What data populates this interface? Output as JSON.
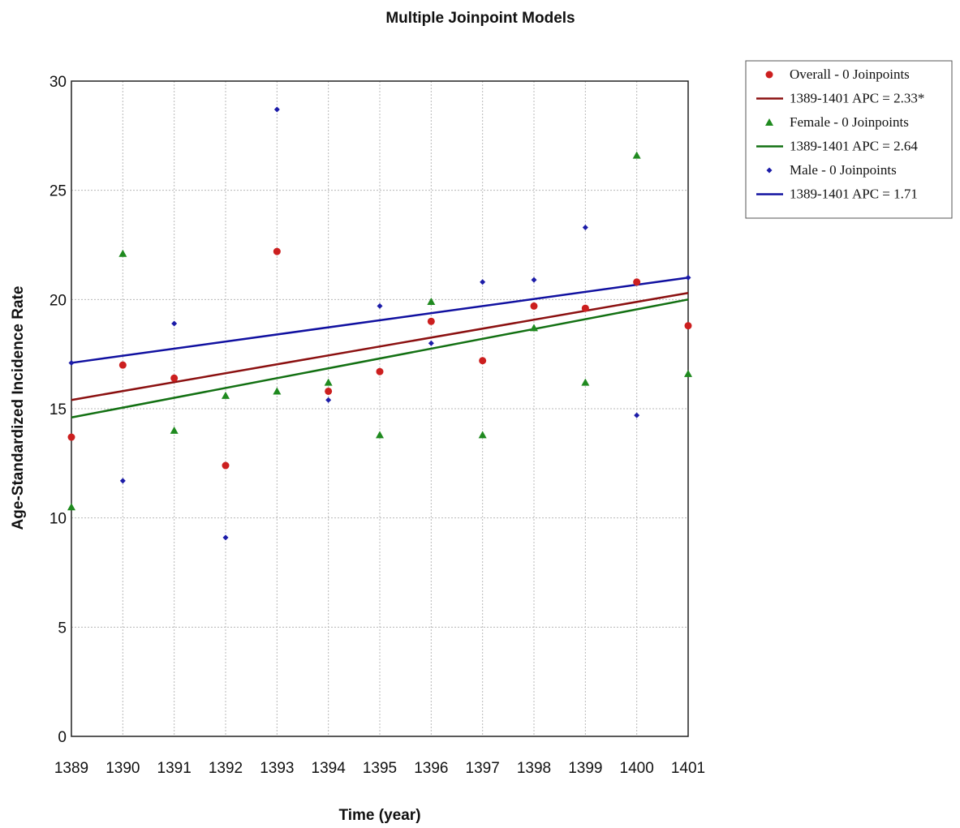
{
  "chart_data": {
    "type": "scatter",
    "title": "Multiple Joinpoint Models",
    "xlabel": "Time (year)",
    "ylabel": "Age-Standardized Incidence Rate",
    "x": [
      1389,
      1390,
      1391,
      1392,
      1393,
      1394,
      1395,
      1396,
      1397,
      1398,
      1399,
      1400,
      1401
    ],
    "xlim": [
      1389,
      1401
    ],
    "ylim": [
      0,
      30
    ],
    "yticks": [
      0,
      5,
      10,
      15,
      20,
      25,
      30
    ],
    "grid": true,
    "legend_position": "outside-right",
    "series": [
      {
        "name": "Overall - 0 Joinpoints",
        "marker": "circle",
        "color": "#cc1f1f",
        "values": [
          13.7,
          17.0,
          16.4,
          12.4,
          22.2,
          15.8,
          16.7,
          19.0,
          17.2,
          19.7,
          19.6,
          20.8,
          18.8
        ]
      },
      {
        "name": "Female - 0 Joinpoints",
        "marker": "triangle",
        "color": "#1f8a1f",
        "values": [
          10.5,
          22.1,
          14.0,
          15.6,
          15.8,
          16.2,
          13.8,
          19.9,
          13.8,
          18.7,
          16.2,
          26.6,
          16.6
        ]
      },
      {
        "name": "Male - 0 Joinpoints",
        "marker": "diamond",
        "color": "#1c1ca8",
        "values": [
          17.1,
          11.7,
          18.9,
          9.1,
          28.7,
          15.4,
          19.7,
          18.0,
          20.8,
          20.9,
          23.3,
          14.7,
          21.0
        ]
      }
    ],
    "fits": [
      {
        "name": "1389-1401 APC  = 2.33*",
        "color": "#8b1010",
        "y_start": 15.4,
        "y_end": 20.3
      },
      {
        "name": "1389-1401 APC  = 2.64",
        "color": "#127012",
        "y_start": 14.6,
        "y_end": 20.0
      },
      {
        "name": "1389-1401 APC  = 1.71",
        "color": "#1010a0",
        "y_start": 17.1,
        "y_end": 21.0
      }
    ]
  }
}
